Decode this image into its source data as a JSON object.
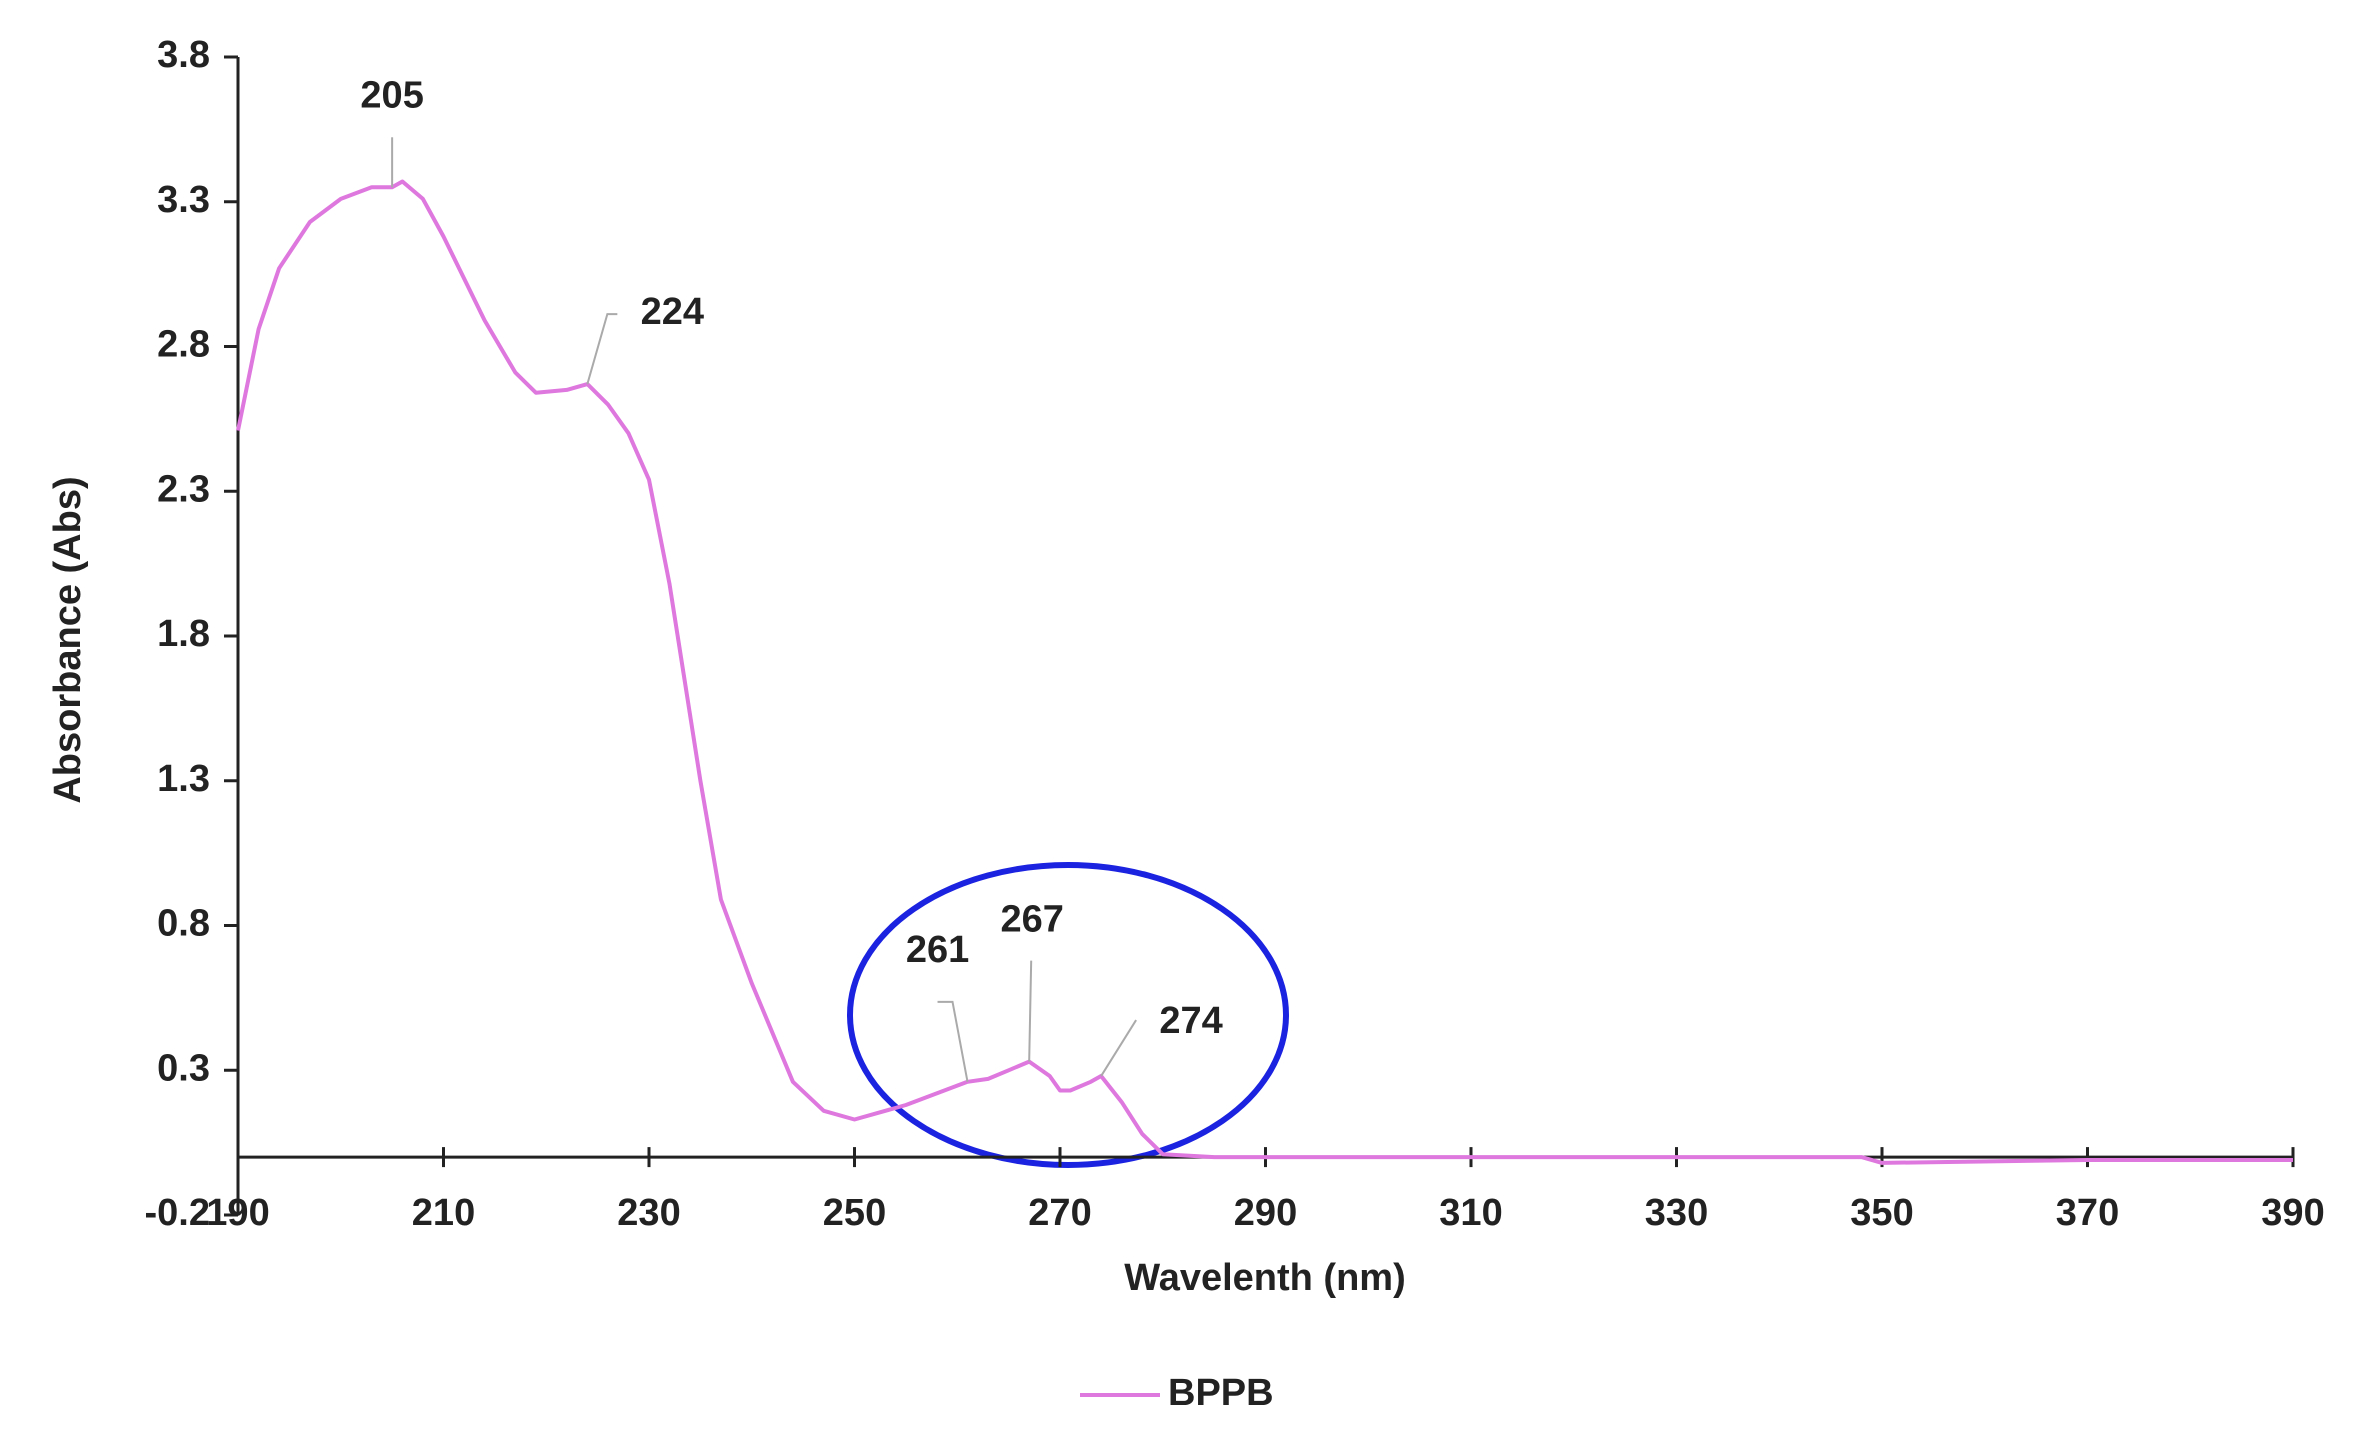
{
  "chart_data": {
    "type": "line",
    "x_label": "Wavelenth (nm)",
    "y_label": "Absorbance (Abs)",
    "xlim": [
      190,
      390
    ],
    "xticks": [
      190,
      210,
      230,
      250,
      270,
      290,
      310,
      330,
      350,
      370,
      390
    ],
    "ylim": [
      -0.2,
      3.8
    ],
    "yticks": [
      -0.2,
      0.3,
      0.8,
      1.3,
      1.8,
      2.3,
      2.8,
      3.3,
      3.8
    ],
    "legend": "bottom",
    "series": [
      {
        "name": "BPPB",
        "color": "#de77de",
        "x": [
          190,
          192,
          194,
          197,
          200,
          203,
          205,
          206,
          208,
          210,
          214,
          217,
          219,
          222,
          224,
          226,
          228,
          230,
          232,
          235,
          237,
          240,
          244,
          247,
          250,
          255,
          258,
          261,
          263,
          265,
          267,
          269,
          270,
          271,
          273,
          274,
          276,
          278,
          280,
          285,
          300,
          320,
          340,
          348,
          350,
          370,
          390
        ],
        "values": [
          2.51,
          2.86,
          3.07,
          3.23,
          3.31,
          3.35,
          3.35,
          3.37,
          3.31,
          3.18,
          2.89,
          2.71,
          2.64,
          2.65,
          2.67,
          2.6,
          2.5,
          2.34,
          1.98,
          1.3,
          0.89,
          0.6,
          0.26,
          0.16,
          0.13,
          0.18,
          0.22,
          0.26,
          0.27,
          0.3,
          0.33,
          0.28,
          0.23,
          0.23,
          0.26,
          0.28,
          0.19,
          0.08,
          0.01,
          0.0,
          0.0,
          0.0,
          0.0,
          0.0,
          -0.02,
          -0.01,
          -0.01
        ]
      }
    ],
    "annotations": [
      {
        "text": "205",
        "x": 205,
        "y": 3.35
      },
      {
        "text": "224",
        "x": 224,
        "y": 2.67
      },
      {
        "text": "261",
        "x": 261,
        "y": 0.26
      },
      {
        "text": "267",
        "x": 267,
        "y": 0.33
      },
      {
        "text": "274",
        "x": 274,
        "y": 0.28
      }
    ]
  }
}
